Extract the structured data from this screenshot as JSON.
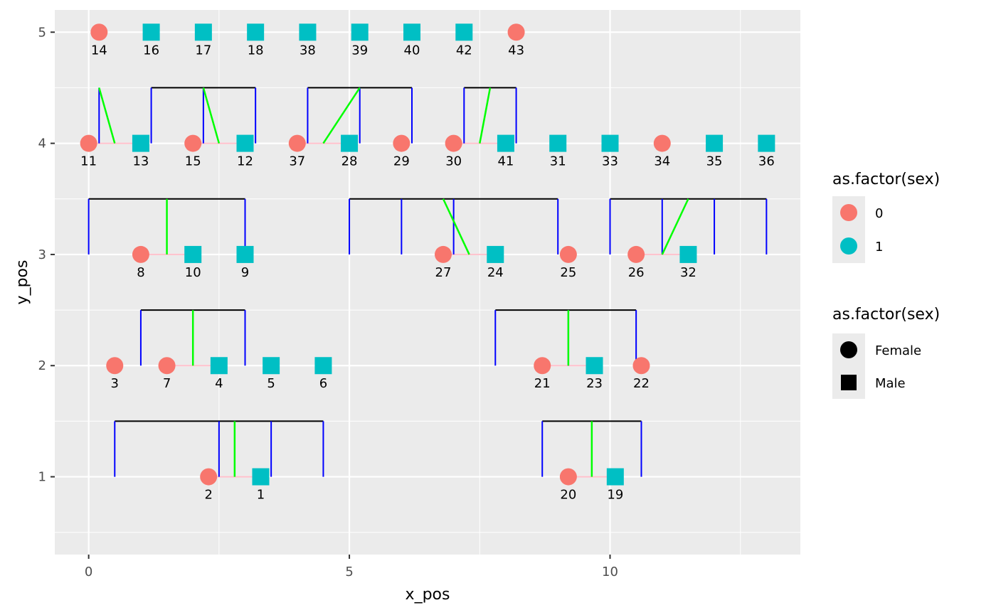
{
  "chart_data": {
    "type": "scatter",
    "title": "",
    "xlabel": "x_pos",
    "ylabel": "y_pos",
    "xlim": [
      -0.65,
      13.65
    ],
    "ylim": [
      0.3,
      5.2
    ],
    "x_ticks": [
      0,
      5,
      10
    ],
    "y_ticks": [
      1,
      2,
      3,
      4,
      5
    ],
    "x_tick_labels": [
      "0",
      "5",
      "10"
    ],
    "y_tick_labels": [
      "1",
      "2",
      "3",
      "4",
      "5"
    ],
    "grid": true,
    "legend_position": "right",
    "colors": {
      "panel_bg": "#EBEBEB",
      "grid": "#FFFFFF",
      "female_color": "#F8766D",
      "male_color": "#00BFC4",
      "parent_link": "#0000FF",
      "sibship_bar": "#000000",
      "descent_link": "#00FF00",
      "spouse_link": "#FFC0CB"
    },
    "legends": [
      {
        "title": "as.factor(sex)",
        "kind": "color",
        "entries": [
          {
            "label": "0",
            "color": "#F8766D"
          },
          {
            "label": "1",
            "color": "#00BFC4"
          }
        ]
      },
      {
        "title": "as.factor(sex)",
        "kind": "shape",
        "entries": [
          {
            "label": "Female",
            "shape": "circle"
          },
          {
            "label": "Male",
            "shape": "square"
          }
        ]
      }
    ],
    "nodes": [
      {
        "id": "1",
        "x": 3.3,
        "y": 1,
        "sex": 1
      },
      {
        "id": "2",
        "x": 2.3,
        "y": 1,
        "sex": 0
      },
      {
        "id": "19",
        "x": 10.1,
        "y": 1,
        "sex": 1
      },
      {
        "id": "20",
        "x": 9.2,
        "y": 1,
        "sex": 0
      },
      {
        "id": "3",
        "x": 0.5,
        "y": 2,
        "sex": 0
      },
      {
        "id": "7",
        "x": 1.5,
        "y": 2,
        "sex": 0
      },
      {
        "id": "4",
        "x": 2.5,
        "y": 2,
        "sex": 1
      },
      {
        "id": "5",
        "x": 3.5,
        "y": 2,
        "sex": 1
      },
      {
        "id": "6",
        "x": 4.5,
        "y": 2,
        "sex": 1
      },
      {
        "id": "21",
        "x": 8.7,
        "y": 2,
        "sex": 0
      },
      {
        "id": "23",
        "x": 9.7,
        "y": 2,
        "sex": 1
      },
      {
        "id": "22",
        "x": 10.6,
        "y": 2,
        "sex": 0
      },
      {
        "id": "8",
        "x": 1.0,
        "y": 3,
        "sex": 0
      },
      {
        "id": "10",
        "x": 2.0,
        "y": 3,
        "sex": 1
      },
      {
        "id": "9",
        "x": 3.0,
        "y": 3,
        "sex": 1
      },
      {
        "id": "27",
        "x": 6.8,
        "y": 3,
        "sex": 0
      },
      {
        "id": "24",
        "x": 7.8,
        "y": 3,
        "sex": 1
      },
      {
        "id": "25",
        "x": 9.2,
        "y": 3,
        "sex": 0
      },
      {
        "id": "26",
        "x": 10.5,
        "y": 3,
        "sex": 0
      },
      {
        "id": "32",
        "x": 11.5,
        "y": 3,
        "sex": 1
      },
      {
        "id": "11",
        "x": 0.0,
        "y": 4,
        "sex": 0
      },
      {
        "id": "13",
        "x": 1.0,
        "y": 4,
        "sex": 1
      },
      {
        "id": "15",
        "x": 2.0,
        "y": 4,
        "sex": 0
      },
      {
        "id": "12",
        "x": 3.0,
        "y": 4,
        "sex": 1
      },
      {
        "id": "37",
        "x": 4.0,
        "y": 4,
        "sex": 0
      },
      {
        "id": "28",
        "x": 5.0,
        "y": 4,
        "sex": 1
      },
      {
        "id": "29",
        "x": 6.0,
        "y": 4,
        "sex": 0
      },
      {
        "id": "30",
        "x": 7.0,
        "y": 4,
        "sex": 0
      },
      {
        "id": "41",
        "x": 8.0,
        "y": 4,
        "sex": 1
      },
      {
        "id": "31",
        "x": 9.0,
        "y": 4,
        "sex": 1
      },
      {
        "id": "33",
        "x": 10.0,
        "y": 4,
        "sex": 1
      },
      {
        "id": "34",
        "x": 11.0,
        "y": 4,
        "sex": 0
      },
      {
        "id": "35",
        "x": 12.0,
        "y": 4,
        "sex": 1
      },
      {
        "id": "36",
        "x": 13.0,
        "y": 4,
        "sex": 1
      },
      {
        "id": "14",
        "x": 0.2,
        "y": 5,
        "sex": 0
      },
      {
        "id": "16",
        "x": 1.2,
        "y": 5,
        "sex": 1
      },
      {
        "id": "17",
        "x": 2.2,
        "y": 5,
        "sex": 1
      },
      {
        "id": "18",
        "x": 3.2,
        "y": 5,
        "sex": 1
      },
      {
        "id": "38",
        "x": 4.2,
        "y": 5,
        "sex": 1
      },
      {
        "id": "39",
        "x": 5.2,
        "y": 5,
        "sex": 1
      },
      {
        "id": "40",
        "x": 6.2,
        "y": 5,
        "sex": 1
      },
      {
        "id": "42",
        "x": 7.2,
        "y": 5,
        "sex": 1
      },
      {
        "id": "43",
        "x": 8.2,
        "y": 5,
        "sex": 0
      }
    ],
    "spouse_links": [
      {
        "x1": 2.3,
        "x2": 3.3,
        "y": 1
      },
      {
        "x1": 9.2,
        "x2": 10.1,
        "y": 1
      },
      {
        "x1": 1.5,
        "x2": 2.5,
        "y": 2
      },
      {
        "x1": 8.7,
        "x2": 9.7,
        "y": 2
      },
      {
        "x1": 1.0,
        "x2": 2.0,
        "y": 3
      },
      {
        "x1": 6.8,
        "x2": 7.8,
        "y": 3
      },
      {
        "x1": 10.5,
        "x2": 11.5,
        "y": 3
      },
      {
        "x1": 0.0,
        "x2": 1.0,
        "y": 4
      },
      {
        "x1": 2.0,
        "x2": 3.0,
        "y": 4
      },
      {
        "x1": 4.0,
        "x2": 5.0,
        "y": 4
      },
      {
        "x1": 7.0,
        "x2": 8.0,
        "y": 4
      }
    ],
    "sibships": [
      {
        "bar_y": 1.5,
        "children_x": [
          0.5,
          2.5,
          3.5,
          4.5
        ]
      },
      {
        "bar_y": 1.5,
        "children_x": [
          8.7,
          10.6
        ]
      },
      {
        "bar_y": 2.5,
        "children_x": [
          1.0,
          3.0
        ]
      },
      {
        "bar_y": 2.5,
        "children_x": [
          7.8,
          9.2,
          10.5
        ]
      },
      {
        "bar_y": 3.5,
        "children_x": [
          0.0,
          3.0
        ]
      },
      {
        "bar_y": 3.5,
        "children_x": [
          5.0,
          6.0,
          7.0,
          9.0
        ]
      },
      {
        "bar_y": 3.5,
        "children_x": [
          10.0,
          11.0,
          12.0,
          13.0
        ]
      },
      {
        "bar_y": 4.5,
        "children_x": [
          0.2
        ]
      },
      {
        "bar_y": 4.5,
        "children_x": [
          1.2,
          2.2,
          3.2
        ]
      },
      {
        "bar_y": 4.5,
        "children_x": [
          4.2,
          5.2,
          6.2
        ]
      },
      {
        "bar_y": 4.5,
        "children_x": [
          7.2,
          8.2
        ]
      }
    ],
    "descent_links": [
      {
        "from": [
          2.8,
          1.0
        ],
        "to": [
          2.8,
          1.5
        ]
      },
      {
        "from": [
          9.65,
          1.0
        ],
        "to": [
          9.65,
          1.5
        ]
      },
      {
        "from": [
          2.0,
          2.0
        ],
        "to": [
          2.0,
          2.5
        ]
      },
      {
        "from": [
          9.2,
          2.0
        ],
        "to": [
          9.2,
          2.5
        ]
      },
      {
        "from": [
          1.5,
          3.0
        ],
        "to": [
          1.5,
          3.5
        ]
      },
      {
        "from": [
          7.3,
          3.0
        ],
        "to": [
          6.8,
          3.5
        ]
      },
      {
        "from": [
          11.0,
          3.0
        ],
        "to": [
          11.5,
          3.5
        ]
      },
      {
        "from": [
          0.5,
          4.0
        ],
        "to": [
          0.2,
          4.5
        ]
      },
      {
        "from": [
          2.5,
          4.0
        ],
        "to": [
          2.2,
          4.5
        ]
      },
      {
        "from": [
          4.5,
          4.0
        ],
        "to": [
          5.2,
          4.5
        ]
      },
      {
        "from": [
          7.5,
          4.0
        ],
        "to": [
          7.7,
          4.5
        ]
      }
    ]
  }
}
